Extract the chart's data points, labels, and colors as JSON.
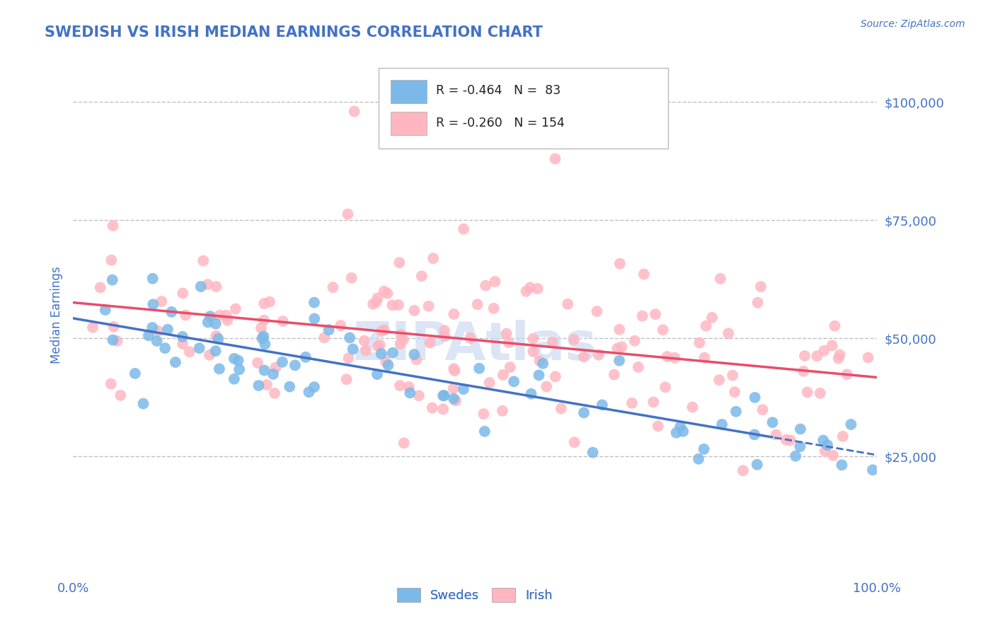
{
  "title": "SWEDISH VS IRISH MEDIAN EARNINGS CORRELATION CHART",
  "source_text": "Source: ZipAtlas.com",
  "ylabel": "Median Earnings",
  "x_min": 0.0,
  "x_max": 1.0,
  "y_min": 0,
  "y_max": 110000,
  "y_ticks": [
    25000,
    50000,
    75000,
    100000
  ],
  "y_tick_labels": [
    "$25,000",
    "$50,000",
    "$75,000",
    "$100,000"
  ],
  "x_tick_labels": [
    "0.0%",
    "100.0%"
  ],
  "swedish_color": "#7cb9e8",
  "irish_color": "#ffb6c1",
  "swedish_line_color": "#4472c4",
  "irish_line_color": "#e84d6a",
  "title_color": "#4472c4",
  "axis_label_color": "#4472c4",
  "tick_label_color": "#4472c4",
  "watermark_color": "#c8d8f0",
  "background_color": "#ffffff",
  "grid_color": "#c0c0c0"
}
